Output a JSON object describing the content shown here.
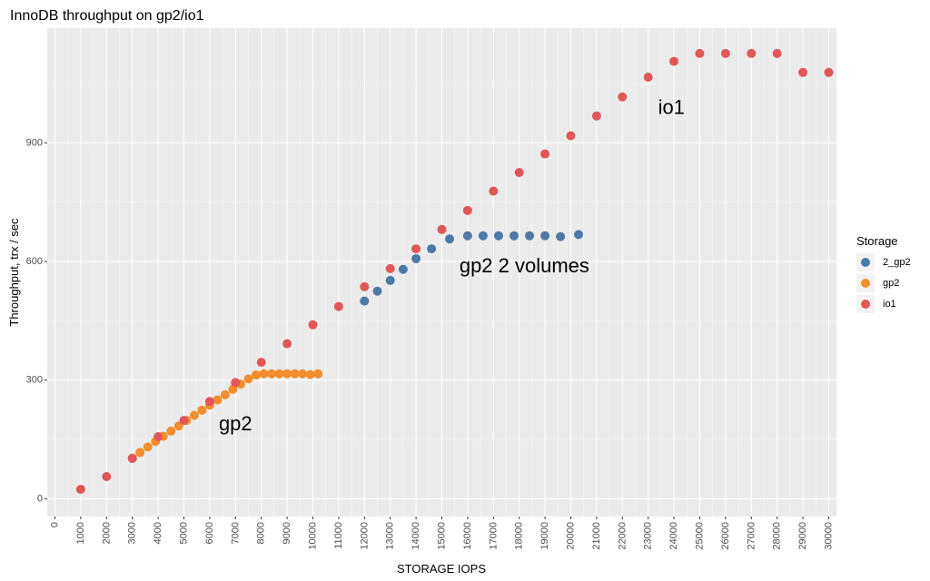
{
  "chart_data": {
    "type": "scatter",
    "title": "InnoDB throughput on gp2/io1",
    "xlabel": "STORAGE IOPS",
    "ylabel": "Throughput, trx / sec",
    "xlim": [
      -300,
      30300
    ],
    "ylim": [
      -45,
      1190
    ],
    "x_ticks": [
      0,
      1000,
      2000,
      3000,
      4000,
      5000,
      6000,
      7000,
      8000,
      9000,
      10000,
      11000,
      12000,
      13000,
      14000,
      15000,
      16000,
      17000,
      18000,
      19000,
      20000,
      21000,
      22000,
      23000,
      24000,
      25000,
      26000,
      27000,
      28000,
      29000,
      30000
    ],
    "x_tick_labels": [
      "0",
      "1000",
      "2000",
      "3000",
      "4000",
      "5000",
      "6000",
      "7000",
      "8000",
      "9000",
      "10000",
      "11000",
      "12000",
      "13000",
      "14000",
      "15000",
      "16000",
      "17000",
      "18000",
      "19000",
      "20000",
      "21000",
      "22000",
      "23000",
      "24000",
      "25000",
      "26000",
      "27000",
      "28000",
      "29000",
      "30000"
    ],
    "y_ticks": [
      0,
      300,
      600,
      900
    ],
    "y_tick_labels": [
      "0",
      "300",
      "600",
      "900"
    ],
    "grid": true,
    "legend_title": "Storage",
    "legend_position": "right",
    "series": [
      {
        "name": "2_gp2",
        "color": "#4e79a7",
        "points": [
          [
            12000,
            500
          ],
          [
            12500,
            525
          ],
          [
            13000,
            552
          ],
          [
            13500,
            580
          ],
          [
            14000,
            607
          ],
          [
            14600,
            632
          ],
          [
            15300,
            657
          ],
          [
            16000,
            665
          ],
          [
            16600,
            665
          ],
          [
            17200,
            665
          ],
          [
            17800,
            665
          ],
          [
            18400,
            665
          ],
          [
            19000,
            665
          ],
          [
            19600,
            663
          ],
          [
            20300,
            668
          ]
        ]
      },
      {
        "name": "gp2",
        "color": "#f28e2b",
        "points": [
          [
            3000,
            103
          ],
          [
            3300,
            117
          ],
          [
            3600,
            131
          ],
          [
            3900,
            145
          ],
          [
            4200,
            158
          ],
          [
            4500,
            171
          ],
          [
            4800,
            184
          ],
          [
            5100,
            198
          ],
          [
            5400,
            211
          ],
          [
            5700,
            224
          ],
          [
            6000,
            237
          ],
          [
            6300,
            250
          ],
          [
            6600,
            263
          ],
          [
            6900,
            277
          ],
          [
            7200,
            290
          ],
          [
            7500,
            303
          ],
          [
            7800,
            313
          ],
          [
            8100,
            316
          ],
          [
            8400,
            316
          ],
          [
            8700,
            316
          ],
          [
            9000,
            316
          ],
          [
            9300,
            316
          ],
          [
            9600,
            316
          ],
          [
            9900,
            314
          ],
          [
            10200,
            316
          ]
        ]
      },
      {
        "name": "io1",
        "color": "#e15759",
        "points": [
          [
            1000,
            24
          ],
          [
            2000,
            56
          ],
          [
            3000,
            102
          ],
          [
            4000,
            157
          ],
          [
            5000,
            198
          ],
          [
            6000,
            246
          ],
          [
            7000,
            294
          ],
          [
            8000,
            345
          ],
          [
            9000,
            392
          ],
          [
            10000,
            440
          ],
          [
            11000,
            486
          ],
          [
            12000,
            536
          ],
          [
            13000,
            582
          ],
          [
            14000,
            632
          ],
          [
            15000,
            681
          ],
          [
            16000,
            729
          ],
          [
            17000,
            778
          ],
          [
            18000,
            825
          ],
          [
            19000,
            872
          ],
          [
            20000,
            918
          ],
          [
            21000,
            968
          ],
          [
            22000,
            1016
          ],
          [
            23000,
            1066
          ],
          [
            24000,
            1106
          ],
          [
            25000,
            1126
          ],
          [
            26000,
            1126
          ],
          [
            27000,
            1126
          ],
          [
            28000,
            1126
          ],
          [
            29000,
            1078
          ],
          [
            30000,
            1078
          ]
        ]
      }
    ],
    "annotations": [
      {
        "text": "gp2",
        "x": 7000,
        "y": 190
      },
      {
        "text": "gp2 2 volumes",
        "x": 18200,
        "y": 590
      },
      {
        "text": "io1",
        "x": 23900,
        "y": 990
      }
    ]
  }
}
